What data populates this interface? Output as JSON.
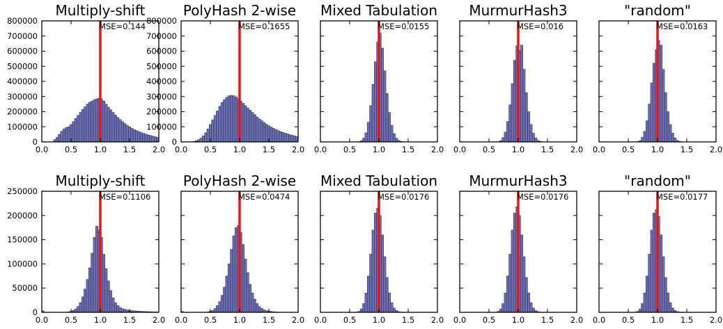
{
  "colors": {
    "bar_fill": "#5b5fa6",
    "bar_edge": "#2a2a55",
    "reference_line": "#e8151a",
    "axes": "#000000",
    "background": "#ffffff"
  },
  "chart_data": [
    {
      "type": "bar",
      "row": 1,
      "title": "Multiply-shift",
      "annotation": "MSE=0.144",
      "xlim": [
        0,
        2
      ],
      "ylim": [
        0,
        800000
      ],
      "bin_width": 0.04,
      "xticks": [
        "0.0",
        "0.5",
        "1.0",
        "1.5",
        "2.0"
      ],
      "yticks": [
        "0",
        "100000",
        "200000",
        "300000",
        "400000",
        "500000",
        "600000",
        "700000",
        "800000"
      ],
      "reference_x": 1.0,
      "values": [
        0,
        0,
        0,
        0,
        0,
        15000,
        30000,
        50000,
        70000,
        85000,
        95000,
        100000,
        115000,
        135000,
        155000,
        175000,
        195000,
        215000,
        232000,
        250000,
        262000,
        270000,
        280000,
        285000,
        290000,
        285000,
        270000,
        250000,
        230000,
        212000,
        195000,
        178000,
        162000,
        148000,
        135000,
        122000,
        110000,
        100000,
        90000,
        82000,
        75000,
        68000,
        62000,
        56000,
        51000,
        46000,
        42000,
        38000,
        34000,
        30000
      ]
    },
    {
      "type": "bar",
      "row": 1,
      "title": "PolyHash 2-wise",
      "annotation": "MSE=0.1655",
      "xlim": [
        0,
        2
      ],
      "ylim": [
        0,
        800000
      ],
      "bin_width": 0.04,
      "xticks": [
        "0.0",
        "0.5",
        "1.0",
        "1.5",
        "2.0"
      ],
      "yticks": [
        "0",
        "100000",
        "200000",
        "300000",
        "400000",
        "500000",
        "600000",
        "700000",
        "800000"
      ],
      "reference_x": 1.0,
      "values": [
        0,
        0,
        0,
        0,
        0,
        3000,
        8000,
        15000,
        25000,
        40000,
        60000,
        85000,
        115000,
        145000,
        175000,
        205000,
        235000,
        260000,
        280000,
        295000,
        305000,
        308000,
        305000,
        298000,
        285000,
        270000,
        255000,
        240000,
        225000,
        210000,
        195000,
        180000,
        165000,
        152000,
        140000,
        128000,
        117000,
        107000,
        98000,
        90000,
        82000,
        75000,
        69000,
        63000,
        58000,
        53000,
        48000,
        44000,
        40000,
        36000
      ]
    },
    {
      "type": "bar",
      "row": 1,
      "title": "Mixed Tabulation",
      "annotation": "MSE=0.0155",
      "xlim": [
        0,
        2
      ],
      "ylim": [
        0,
        800000
      ],
      "bin_width": 0.04,
      "xticks": [
        "0.0",
        "0.5",
        "1.0",
        "1.5",
        "2.0"
      ],
      "yticks": [],
      "reference_x": 1.0,
      "values": [
        0,
        0,
        0,
        0,
        0,
        0,
        0,
        0,
        0,
        0,
        0,
        0,
        0,
        0,
        0,
        0,
        2000,
        8000,
        25000,
        60000,
        130000,
        240000,
        380000,
        530000,
        660000,
        720000,
        620000,
        470000,
        320000,
        195000,
        110000,
        55000,
        25000,
        10000,
        4000,
        1000,
        0,
        0,
        0,
        0,
        0,
        0,
        0,
        0,
        0,
        0,
        0,
        0,
        0,
        0
      ]
    },
    {
      "type": "bar",
      "row": 1,
      "title": "MurmurHash3",
      "annotation": "MSE=0.016",
      "xlim": [
        0,
        2
      ],
      "ylim": [
        0,
        800000
      ],
      "bin_width": 0.04,
      "xticks": [
        "0.0",
        "0.5",
        "1.0",
        "1.5",
        "2.0"
      ],
      "yticks": [],
      "reference_x": 1.0,
      "values": [
        0,
        0,
        0,
        0,
        0,
        0,
        0,
        0,
        0,
        0,
        0,
        0,
        0,
        0,
        0,
        0,
        2000,
        9000,
        28000,
        65000,
        135000,
        245000,
        385000,
        540000,
        635000,
        605000,
        640000,
        480000,
        325000,
        200000,
        115000,
        58000,
        26000,
        10000,
        4000,
        1000,
        0,
        0,
        0,
        0,
        0,
        0,
        0,
        0,
        0,
        0,
        0,
        0,
        0,
        0
      ]
    },
    {
      "type": "bar",
      "row": 1,
      "title": "\"random\"",
      "annotation": "MSE=0.0163",
      "xlim": [
        0,
        2
      ],
      "ylim": [
        0,
        800000
      ],
      "bin_width": 0.04,
      "xticks": [
        "0.0",
        "0.5",
        "1.0",
        "1.5",
        "2.0"
      ],
      "yticks": [],
      "reference_x": 1.0,
      "values": [
        0,
        0,
        0,
        0,
        0,
        0,
        0,
        0,
        0,
        0,
        0,
        0,
        0,
        0,
        0,
        0,
        2000,
        9000,
        30000,
        70000,
        140000,
        250000,
        390000,
        520000,
        610000,
        670000,
        640000,
        480000,
        325000,
        200000,
        115000,
        58000,
        26000,
        10000,
        4000,
        1000,
        0,
        0,
        0,
        0,
        0,
        0,
        0,
        0,
        0,
        0,
        0,
        0,
        0,
        0
      ]
    },
    {
      "type": "bar",
      "row": 2,
      "title": "Multiply-shift",
      "annotation": "MSE=0.1106",
      "xlim": [
        0,
        2
      ],
      "ylim": [
        0,
        250000
      ],
      "bin_width": 0.04,
      "xticks": [
        "0.0",
        "0.5",
        "1.0",
        "1.5",
        "2.0"
      ],
      "yticks": [
        "0",
        "50000",
        "100000",
        "150000",
        "200000",
        "250000"
      ],
      "reference_x": 1.0,
      "values": [
        3000,
        0,
        0,
        0,
        0,
        0,
        0,
        0,
        0,
        0,
        0,
        1000,
        2000,
        4000,
        7000,
        12000,
        20000,
        32000,
        48000,
        68000,
        92000,
        122000,
        155000,
        178000,
        170000,
        155000,
        120000,
        90000,
        65000,
        45000,
        30000,
        20000,
        14000,
        10000,
        7500,
        6000,
        5000,
        4000,
        3500,
        3000,
        2600,
        2300,
        2000,
        1800,
        1600,
        1400,
        1200,
        1000,
        900,
        800
      ]
    },
    {
      "type": "bar",
      "row": 2,
      "title": "PolyHash 2-wise",
      "annotation": "MSE=0.0474",
      "xlim": [
        0,
        2
      ],
      "ylim": [
        0,
        250000
      ],
      "bin_width": 0.04,
      "xticks": [
        "0.0",
        "0.5",
        "1.0",
        "1.5",
        "2.0"
      ],
      "yticks": [],
      "reference_x": 1.0,
      "values": [
        2000,
        0,
        0,
        0,
        0,
        0,
        0,
        0,
        0,
        0,
        0,
        1000,
        2000,
        4000,
        8000,
        14000,
        22000,
        35000,
        52000,
        75000,
        100000,
        130000,
        158000,
        175000,
        180000,
        165000,
        140000,
        110000,
        82000,
        58000,
        40000,
        27000,
        18000,
        12000,
        8000,
        5000,
        3500,
        2500,
        1800,
        1200,
        800,
        500,
        300,
        200,
        100,
        0,
        0,
        0,
        0,
        0
      ]
    },
    {
      "type": "bar",
      "row": 2,
      "title": "Mixed Tabulation",
      "annotation": "MSE=0.0176",
      "xlim": [
        0,
        2
      ],
      "ylim": [
        0,
        250000
      ],
      "bin_width": 0.04,
      "xticks": [
        "0.0",
        "0.5",
        "1.0",
        "1.5",
        "2.0"
      ],
      "yticks": [],
      "reference_x": 1.0,
      "values": [
        0,
        0,
        0,
        0,
        0,
        0,
        0,
        0,
        0,
        0,
        0,
        0,
        0,
        0,
        0,
        500,
        2000,
        7000,
        18000,
        40000,
        75000,
        120000,
        170000,
        205000,
        215000,
        200000,
        160000,
        115000,
        72000,
        40000,
        20000,
        9000,
        4000,
        1500,
        500,
        0,
        0,
        0,
        0,
        0,
        0,
        0,
        0,
        0,
        0,
        0,
        0,
        0,
        0,
        0
      ]
    },
    {
      "type": "bar",
      "row": 2,
      "title": "MurmurHash3",
      "annotation": "MSE=0.0176",
      "xlim": [
        0,
        2
      ],
      "ylim": [
        0,
        250000
      ],
      "bin_width": 0.04,
      "xticks": [
        "0.0",
        "0.5",
        "1.0",
        "1.5",
        "2.0"
      ],
      "yticks": [],
      "reference_x": 1.0,
      "values": [
        0,
        0,
        0,
        0,
        0,
        0,
        0,
        0,
        0,
        0,
        0,
        0,
        0,
        0,
        0,
        500,
        2000,
        7000,
        18000,
        40000,
        75000,
        120000,
        170000,
        205000,
        218000,
        200000,
        160000,
        115000,
        72000,
        40000,
        20000,
        9000,
        4000,
        1500,
        500,
        0,
        0,
        0,
        0,
        0,
        0,
        0,
        0,
        0,
        0,
        0,
        0,
        0,
        0,
        0
      ]
    },
    {
      "type": "bar",
      "row": 2,
      "title": "\"random\"",
      "annotation": "MSE=0.0177",
      "xlim": [
        0,
        2
      ],
      "ylim": [
        0,
        250000
      ],
      "bin_width": 0.04,
      "xticks": [
        "0.0",
        "0.5",
        "1.0",
        "1.5",
        "2.0"
      ],
      "yticks": [],
      "reference_x": 1.0,
      "values": [
        0,
        0,
        0,
        0,
        0,
        0,
        0,
        0,
        0,
        0,
        0,
        0,
        0,
        0,
        0,
        500,
        2000,
        7000,
        18000,
        40000,
        75000,
        120000,
        170000,
        205000,
        212000,
        198000,
        160000,
        115000,
        72000,
        40000,
        20000,
        9000,
        4000,
        1500,
        500,
        0,
        0,
        0,
        0,
        0,
        0,
        0,
        0,
        0,
        0,
        0,
        0,
        0,
        0,
        0
      ]
    }
  ]
}
